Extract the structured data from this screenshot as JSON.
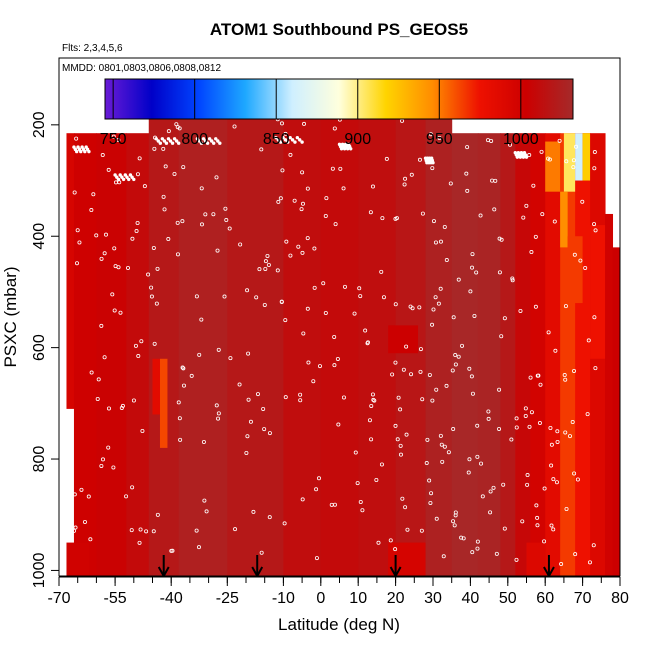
{
  "chart_data": {
    "type": "heatmap",
    "title": "ATOM1 Southbound PS_GEOS5",
    "notes": [
      "Flts: 2,3,4,5,6",
      "MMDD: 0801,0803,0806,0808,0812"
    ],
    "xlabel": "Latitude (deg N)",
    "ylabel": "PSXC (mbar)",
    "xlim": [
      -70,
      80
    ],
    "ylim": [
      1010,
      80
    ],
    "y_inverted": true,
    "x_ticks": [
      -70,
      -55,
      -40,
      -25,
      -10,
      0,
      10,
      20,
      30,
      40,
      50,
      60,
      70,
      80
    ],
    "x_tick_labels": [
      "-70",
      "-55",
      "-40",
      "-25",
      "-10",
      "0",
      "10",
      "20",
      "30",
      "40",
      "50",
      "60",
      "70",
      "80"
    ],
    "y_ticks": [
      200,
      400,
      600,
      800,
      1000
    ],
    "y_tick_labels": [
      "200",
      "400",
      "600",
      "800",
      "1000"
    ],
    "colorbar": {
      "min": 745,
      "max": 1032,
      "tick_values": [
        750,
        800,
        850,
        900,
        950,
        1000
      ],
      "tick_labels": [
        "750",
        "800",
        "850",
        "900",
        "950",
        "1000"
      ],
      "colors": [
        "#6a1bd6",
        "#0000c8",
        "#0044ff",
        "#1ea8ff",
        "#cfefff",
        "#ffffdd",
        "#ffd400",
        "#ff8c00",
        "#ee1100",
        "#cc0000",
        "#a52a2a"
      ]
    },
    "grid": false,
    "legend": "none",
    "columns": [
      {
        "x0": -68,
        "x1": -66,
        "top": 215,
        "bottom": 710,
        "value": 995
      },
      {
        "x0": -66,
        "x1": -60,
        "top": 215,
        "bottom": 1010,
        "value": 1002
      },
      {
        "x0": -60,
        "x1": -52,
        "top": 215,
        "bottom": 1010,
        "value": 1005
      },
      {
        "x0": -52,
        "x1": -46,
        "top": 215,
        "bottom": 1010,
        "value": 1010
      },
      {
        "x0": -46,
        "x1": -38,
        "top": 170,
        "bottom": 1010,
        "value": 1020
      },
      {
        "x0": -38,
        "x1": -25,
        "top": 170,
        "bottom": 1010,
        "value": 1025
      },
      {
        "x0": -25,
        "x1": -10,
        "top": 170,
        "bottom": 1010,
        "value": 1020
      },
      {
        "x0": -10,
        "x1": 0,
        "top": 170,
        "bottom": 1010,
        "value": 1012
      },
      {
        "x0": 0,
        "x1": 10,
        "top": 170,
        "bottom": 1010,
        "value": 1010
      },
      {
        "x0": 10,
        "x1": 20,
        "top": 170,
        "bottom": 1010,
        "value": 1013
      },
      {
        "x0": 20,
        "x1": 28,
        "top": 170,
        "bottom": 1010,
        "value": 1018
      },
      {
        "x0": 28,
        "x1": 35,
        "top": 170,
        "bottom": 1010,
        "value": 1026
      },
      {
        "x0": 35,
        "x1": 42,
        "top": 215,
        "bottom": 1010,
        "value": 1030
      },
      {
        "x0": 42,
        "x1": 48,
        "top": 215,
        "bottom": 1010,
        "value": 1028
      },
      {
        "x0": 48,
        "x1": 52,
        "top": 215,
        "bottom": 1010,
        "value": 1020
      },
      {
        "x0": 52,
        "x1": 56,
        "top": 215,
        "bottom": 1010,
        "value": 1008
      },
      {
        "x0": 56,
        "x1": 60,
        "top": 215,
        "bottom": 1010,
        "value": 998
      },
      {
        "x0": 60,
        "x1": 64,
        "top": 215,
        "bottom": 1010,
        "value": 985
      },
      {
        "x0": 64,
        "x1": 68,
        "top": 215,
        "bottom": 1010,
        "value": 965
      },
      {
        "x0": 68,
        "x1": 72,
        "top": 215,
        "bottom": 1010,
        "value": 975
      },
      {
        "x0": 72,
        "x1": 76,
        "top": 215,
        "bottom": 1010,
        "value": 990
      },
      {
        "x0": 76,
        "x1": 78,
        "top": 360,
        "bottom": 1010,
        "value": 1000
      },
      {
        "x0": 78,
        "x1": 80,
        "top": 420,
        "bottom": 1010,
        "value": 1003
      }
    ],
    "patches": [
      {
        "x0": 65,
        "x1": 68,
        "top": 215,
        "bottom": 320,
        "value": 905
      },
      {
        "x0": 68,
        "x1": 70,
        "top": 215,
        "bottom": 300,
        "value": 860
      },
      {
        "x0": 70,
        "x1": 72,
        "top": 215,
        "bottom": 300,
        "value": 920
      },
      {
        "x0": 60,
        "x1": 64,
        "top": 230,
        "bottom": 320,
        "value": 950
      },
      {
        "x0": 64,
        "x1": 66,
        "top": 320,
        "bottom": 420,
        "value": 945
      },
      {
        "x0": 66,
        "x1": 70,
        "top": 400,
        "bottom": 520,
        "value": 965
      },
      {
        "x0": 72,
        "x1": 76,
        "top": 380,
        "bottom": 620,
        "value": 975
      },
      {
        "x0": -43,
        "x1": -41,
        "top": 620,
        "bottom": 780,
        "value": 962
      },
      {
        "x0": -45,
        "x1": -43,
        "top": 620,
        "bottom": 720,
        "value": 985
      },
      {
        "x0": 18,
        "x1": 26,
        "top": 560,
        "bottom": 610,
        "value": 1003
      },
      {
        "x0": 18,
        "x1": 28,
        "top": 950,
        "bottom": 1010,
        "value": 996
      },
      {
        "x0": -68,
        "x1": -62,
        "top": 950,
        "bottom": 1010,
        "value": 1000
      },
      {
        "x0": 55,
        "x1": 60,
        "top": 950,
        "bottom": 1010,
        "value": 990
      }
    ],
    "markers": [
      -42,
      -17,
      20,
      61
    ]
  }
}
